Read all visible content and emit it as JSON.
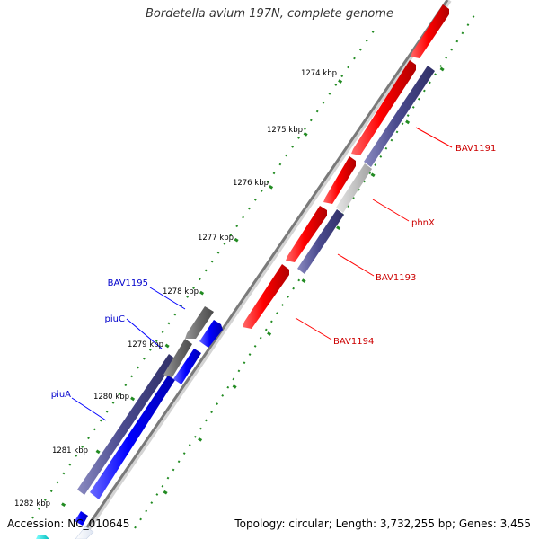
{
  "title": "Bordetella avium 197N, complete genome",
  "footer": {
    "accession": "Accession: NC_010645",
    "summary": "Topology: circular; Length: 3,732,255 bp; Genes: 3,455"
  },
  "colors": {
    "forward_gene": "#ff0000",
    "reverse_gene": "#0000ff",
    "forward_operon": "#4b4b8f",
    "reverse_operon": "#4b4b8f",
    "forward_other": "#c8c8c8",
    "reverse_other": "#6e6e6e",
    "tick": "#228b22",
    "backbone": "#808080",
    "forward_label": "#cc0000",
    "reverse_label": "#0000cc"
  },
  "scale_labels": [
    "1274 kbp",
    "1275 kbp",
    "1276 kbp",
    "1277 kbp",
    "1278 kbp",
    "1279 kbp",
    "1280 kbp",
    "1281 kbp",
    "1282 kbp"
  ],
  "gene_labels": {
    "forward": [
      "BAV1191",
      "phnX",
      "BAV1193",
      "BAV1194"
    ],
    "reverse": [
      "BAV1195",
      "piuC",
      "piuA"
    ]
  }
}
